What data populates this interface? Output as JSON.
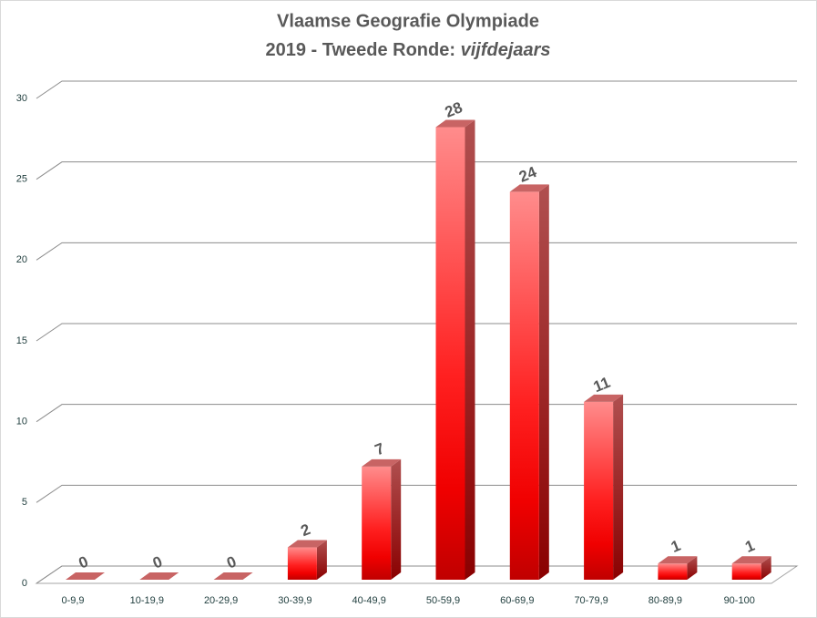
{
  "chart_data": {
    "type": "bar3d",
    "title": "Vlaamse Geografie Olympiade",
    "subtitle": [
      "2019 - Tweede Ronde:",
      "vijfdejaars"
    ],
    "categories": [
      "0-9,9",
      "10-19,9",
      "20-29,9",
      "30-39,9",
      "40-49,9",
      "50-59,9",
      "60-69,9",
      "70-79,9",
      "80-89,9",
      "90-100"
    ],
    "values": [
      0,
      0,
      0,
      2,
      7,
      28,
      24,
      11,
      1,
      1
    ],
    "color": "#ff0000",
    "ylim": [
      0,
      30
    ],
    "yticks": [
      0,
      5,
      10,
      15,
      20,
      25,
      30
    ],
    "grid": true
  }
}
